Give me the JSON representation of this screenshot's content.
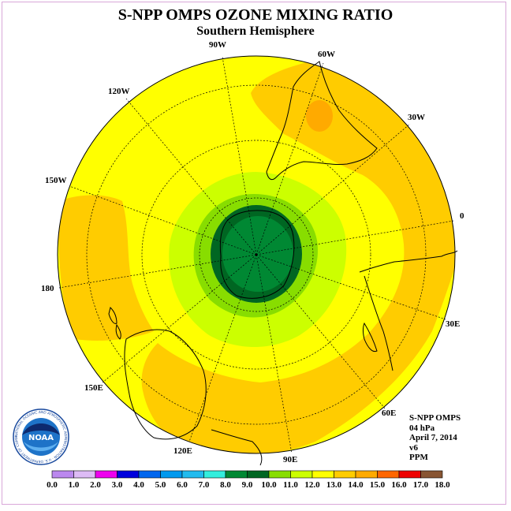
{
  "title": "S-NPP OMPS OZONE MIXING RATIO",
  "subtitle": "Southern Hemisphere",
  "lon_labels": {
    "w90": "90W",
    "w60": "60W",
    "w30": "30W",
    "w120": "120W",
    "w150": "150W",
    "zero": "0",
    "e180": "180",
    "e30": "30E",
    "e60": "60E",
    "e90": "90E",
    "e120": "120E",
    "e150": "150E"
  },
  "info": {
    "instrument": "S-NPP OMPS",
    "level": "04 hPa",
    "date": "April 7, 2014",
    "version": "v6",
    "units": "PPM"
  },
  "legend": {
    "ticks": [
      "0.0",
      "1.0",
      "2.0",
      "3.0",
      "4.0",
      "5.0",
      "6.0",
      "7.0",
      "8.0",
      "9.0",
      "10.0",
      "11.0",
      "12.0",
      "13.0",
      "14.0",
      "15.0",
      "16.0",
      "17.0",
      "18.0"
    ],
    "colors": [
      "#bb88ee",
      "#ddbbf5",
      "#ee00ee",
      "#0000dd",
      "#0066ee",
      "#0099ee",
      "#22bbee",
      "#33eedd",
      "#008833",
      "#006622",
      "#88dd00",
      "#ccff00",
      "#ffff00",
      "#ffcc00",
      "#ffaa00",
      "#ff6600",
      "#ee0000",
      "#885533"
    ]
  },
  "logo": {
    "text": "NOAA",
    "ring_text": "NATIONAL OCEANIC AND ATMOSPHERIC ADMINISTRATION · U.S. DEPARTMENT OF COMMERCE"
  }
}
